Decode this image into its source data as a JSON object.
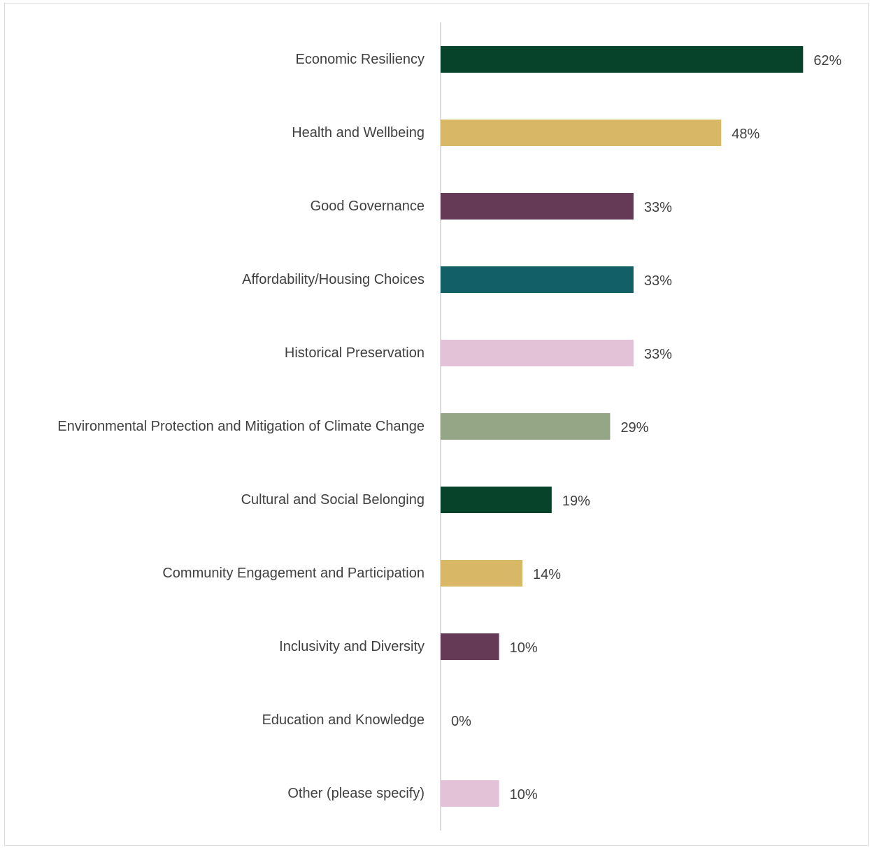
{
  "chart_data": {
    "type": "bar",
    "orientation": "horizontal",
    "title": "",
    "xlabel": "",
    "ylabel": "",
    "categories": [
      "Economic Resiliency",
      "Health and Wellbeing",
      "Good Governance",
      "Affordability/Housing Choices",
      "Historical Preservation",
      "Environmental Protection and Mitigation of Climate Change",
      "Cultural and Social Belonging",
      "Community Engagement and Participation",
      "Inclusivity and Diversity",
      "Education and Knowledge",
      "Other (please specify)"
    ],
    "values": [
      62,
      48,
      33,
      33,
      33,
      29,
      19,
      14,
      10,
      0,
      10
    ],
    "value_labels": [
      "62%",
      "48%",
      "33%",
      "33%",
      "33%",
      "29%",
      "19%",
      "14%",
      "10%",
      "0%",
      "10%"
    ],
    "colors": [
      "#07432a",
      "#d8b866",
      "#653a56",
      "#125f68",
      "#e3c2d8",
      "#95a687",
      "#07432a",
      "#d8b866",
      "#653a56",
      "#125f68",
      "#e3c2d8"
    ],
    "unit": "%",
    "grid": false,
    "legend": "none"
  }
}
